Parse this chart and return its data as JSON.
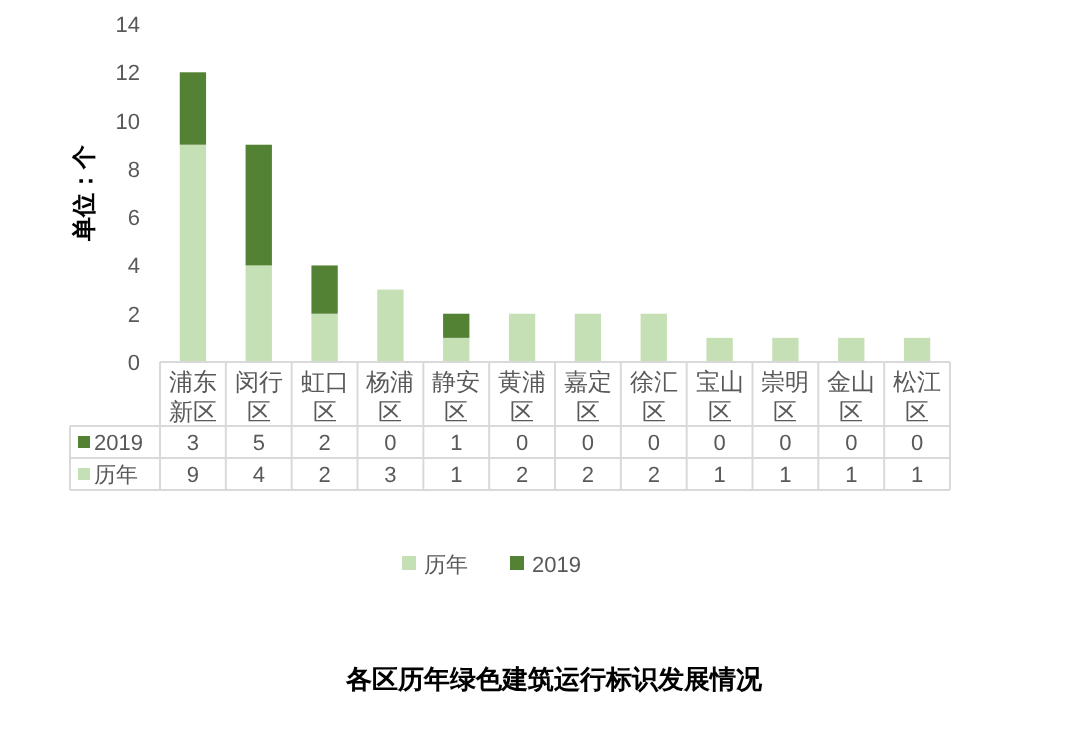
{
  "chart_data": {
    "type": "bar",
    "title": "各区历年绿色建筑运行标识发展情况",
    "ylabel": "单位：个",
    "categories": [
      "浦东新区",
      "闵行区",
      "虹口区",
      "杨浦区",
      "静安区",
      "黄浦区",
      "嘉定区",
      "徐汇区",
      "宝山区",
      "崇明区",
      "金山区",
      "松江区"
    ],
    "series": [
      {
        "name": "历年",
        "color": "#c5e0b4",
        "values": [
          9,
          4,
          2,
          3,
          1,
          2,
          2,
          2,
          1,
          1,
          1,
          1
        ]
      },
      {
        "name": "2019",
        "color": "#548235",
        "values": [
          3,
          5,
          2,
          0,
          1,
          0,
          0,
          0,
          0,
          0,
          0,
          0
        ]
      }
    ],
    "stacked": true,
    "ylim": [
      0,
      14
    ],
    "yticks": [
      0,
      2,
      4,
      6,
      8,
      10,
      12,
      14
    ],
    "legend": "bottom",
    "data_labels": true
  }
}
